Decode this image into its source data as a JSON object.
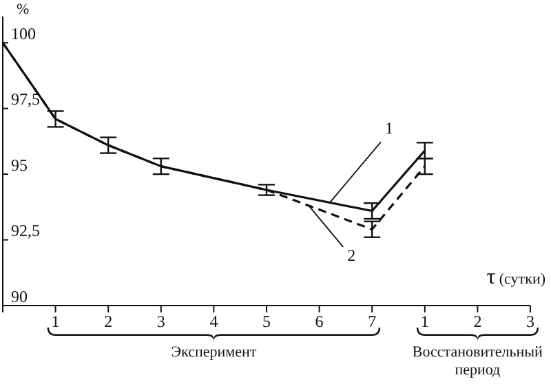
{
  "chart_data": {
    "type": "line",
    "xlabel": "τ (сутки)",
    "ylabel": "%",
    "categories": [
      null,
      "1",
      "2",
      "3",
      "4",
      "5",
      "6",
      "7",
      "1",
      "2",
      "3"
    ],
    "series": [
      {
        "name": "1",
        "color": "#111111",
        "line_style": "solid",
        "values": [
          100,
          97.1,
          96.1,
          95.3,
          null,
          94.4,
          null,
          93.6,
          95.9,
          null,
          null
        ],
        "errors": [
          null,
          0.3,
          0.3,
          0.3,
          null,
          0.2,
          null,
          0.3,
          0.3,
          null,
          null
        ]
      },
      {
        "name": "2",
        "color": "#111111",
        "line_style": "dashed",
        "values": [
          100,
          97.1,
          96.1,
          95.3,
          null,
          94.4,
          null,
          92.9,
          95.3,
          null,
          null
        ],
        "errors": [
          null,
          null,
          null,
          null,
          null,
          null,
          null,
          0.3,
          0.3,
          null,
          null
        ]
      }
    ],
    "ylim": [
      90,
      101
    ],
    "yticks": [
      90,
      {
        "value": 92.5,
        "label": "92,5"
      },
      95,
      {
        "value": 97.5,
        "label": "97,5"
      },
      100
    ],
    "annotations": [
      "Эксперимент",
      "Восстановительный период"
    ],
    "marker": "none",
    "grid": false,
    "legend": false
  }
}
